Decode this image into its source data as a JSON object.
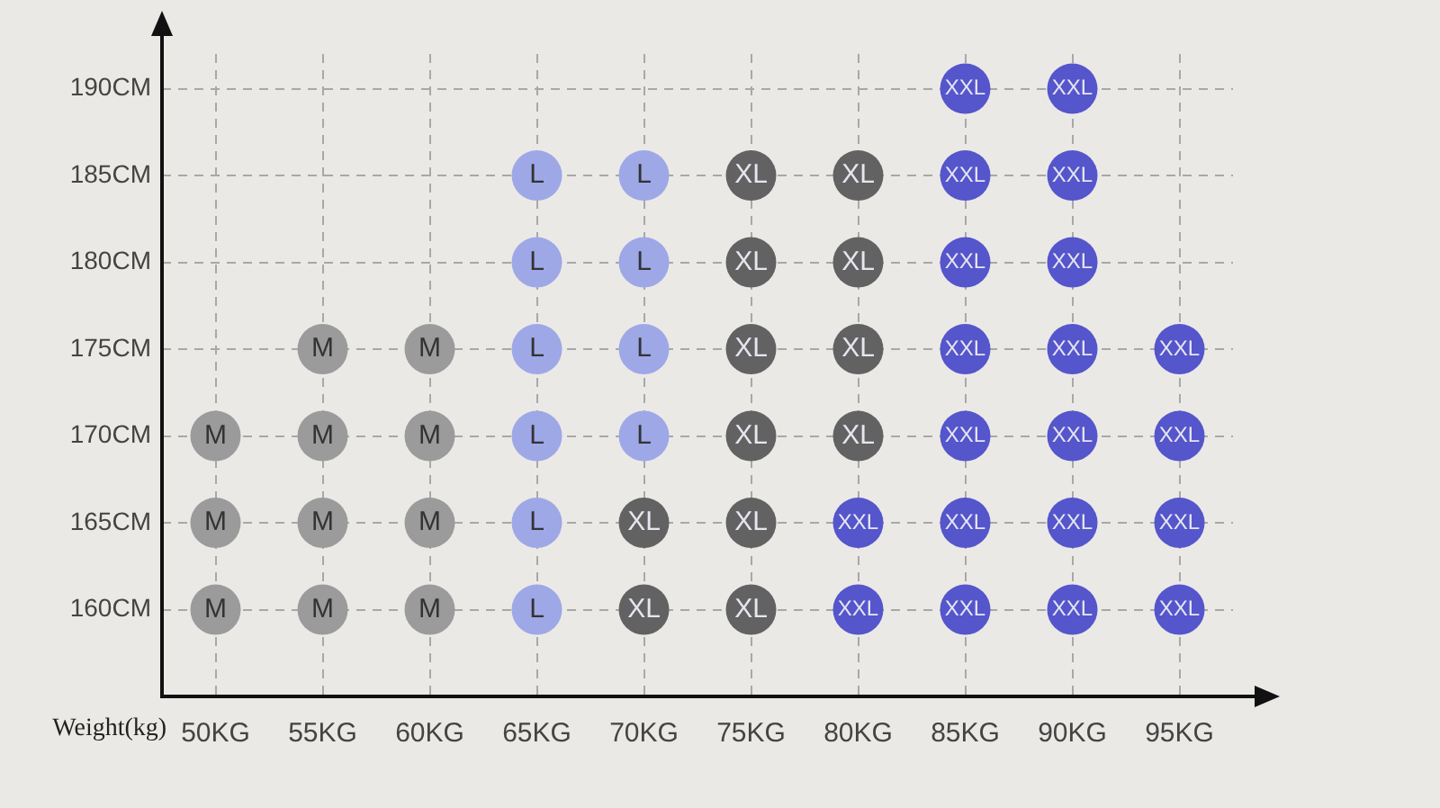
{
  "chart_data": {
    "type": "scatter",
    "xlabel": "Weight(kg)",
    "categories": [
      "50KG",
      "55KG",
      "60KG",
      "65KG",
      "70KG",
      "75KG",
      "80KG",
      "85KG",
      "90KG",
      "95KG"
    ],
    "ylim": [
      155,
      192
    ],
    "yticks": [
      {
        "value": 160,
        "label": "160CM"
      },
      {
        "value": 165,
        "label": "165CM"
      },
      {
        "value": 170,
        "label": "170CM"
      },
      {
        "value": 175,
        "label": "175CM"
      },
      {
        "value": 180,
        "label": "180CM"
      },
      {
        "value": 185,
        "label": "185CM"
      },
      {
        "value": 190,
        "label": "190CM"
      }
    ],
    "grid": true,
    "legend": false,
    "marker": "circle",
    "series": [
      {
        "name": "M",
        "color": "#9b9b9b",
        "x": [
          "50KG",
          "50KG",
          "50KG",
          "55KG",
          "55KG",
          "55KG",
          "55KG",
          "60KG",
          "60KG",
          "60KG",
          "60KG"
        ],
        "values": [
          160,
          165,
          170,
          160,
          165,
          170,
          175,
          160,
          165,
          170,
          175
        ]
      },
      {
        "name": "L",
        "color": "#9ea8e6",
        "x": [
          "65KG",
          "65KG",
          "65KG",
          "65KG",
          "65KG",
          "65KG",
          "70KG",
          "70KG",
          "70KG",
          "70KG"
        ],
        "values": [
          160,
          165,
          170,
          175,
          180,
          185,
          170,
          175,
          180,
          185
        ]
      },
      {
        "name": "XL",
        "color": "#626262",
        "x": [
          "70KG",
          "70KG",
          "75KG",
          "75KG",
          "75KG",
          "75KG",
          "75KG",
          "75KG",
          "80KG",
          "80KG",
          "80KG",
          "80KG"
        ],
        "values": [
          160,
          165,
          160,
          165,
          170,
          175,
          180,
          185,
          170,
          175,
          180,
          185
        ]
      },
      {
        "name": "XXL",
        "color": "#5555cc",
        "x": [
          "80KG",
          "80KG",
          "85KG",
          "85KG",
          "85KG",
          "85KG",
          "85KG",
          "85KG",
          "85KG",
          "90KG",
          "90KG",
          "90KG",
          "90KG",
          "90KG",
          "90KG",
          "90KG",
          "95KG",
          "95KG",
          "95KG",
          "95KG"
        ],
        "values": [
          160,
          165,
          160,
          165,
          170,
          175,
          180,
          185,
          190,
          160,
          165,
          170,
          175,
          180,
          185,
          190,
          160,
          165,
          170,
          175
        ]
      }
    ]
  }
}
